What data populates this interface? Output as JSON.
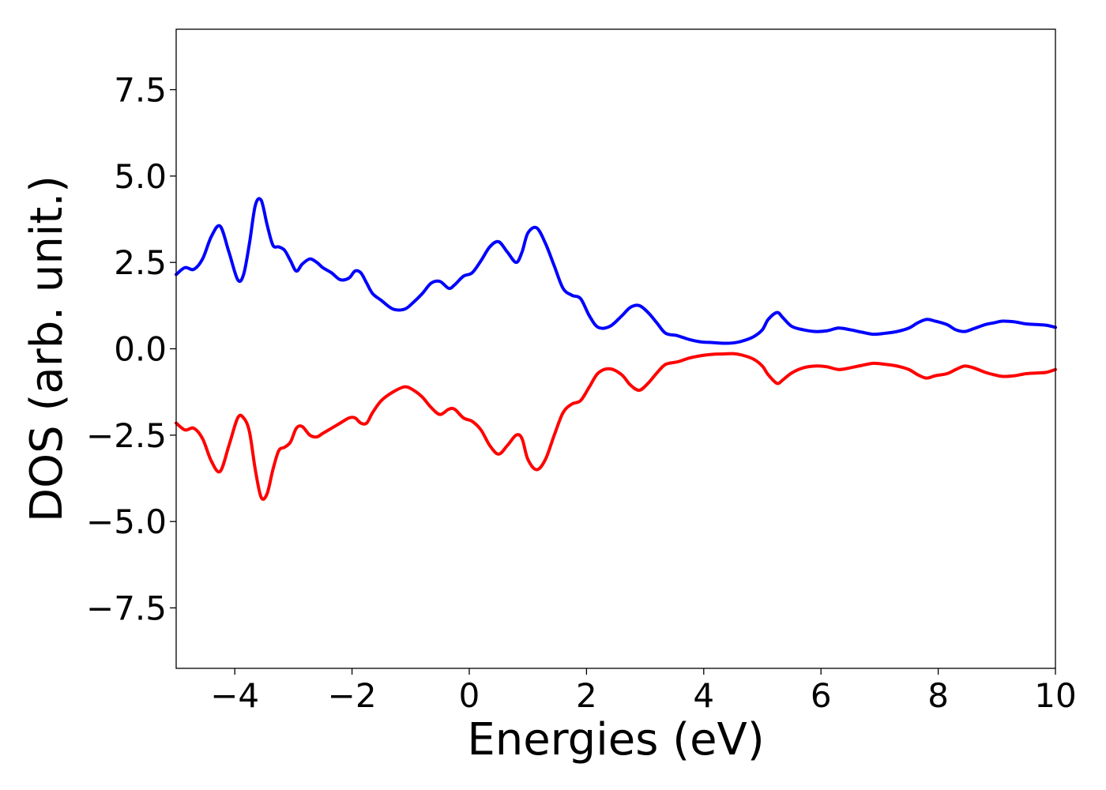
{
  "chart_data": {
    "type": "line",
    "title": "",
    "xlabel": "Energies (eV)",
    "ylabel": "DOS (arb. unit.)",
    "xlim": [
      -5,
      10
    ],
    "ylim": [
      -9.25,
      9.25
    ],
    "grid": false,
    "legend": "none",
    "x_ticks": [
      -4,
      -2,
      0,
      2,
      4,
      6,
      8,
      10
    ],
    "x_tick_labels": [
      "−4",
      "−2",
      "0",
      "2",
      "4",
      "6",
      "8",
      "10"
    ],
    "y_ticks": [
      7.5,
      5.0,
      2.5,
      0.0,
      -2.5,
      -5.0,
      -7.5
    ],
    "y_tick_labels": [
      "7.5",
      "5.0",
      "2.5",
      "0.0",
      "−2.5",
      "−5.0",
      "−7.5"
    ],
    "series": [
      {
        "color": "#0000ff",
        "x": [
          -5.0,
          -4.85,
          -4.7,
          -4.55,
          -4.4,
          -4.25,
          -4.1,
          -3.95,
          -3.85,
          -3.75,
          -3.65,
          -3.55,
          -3.45,
          -3.35,
          -3.25,
          -3.15,
          -3.05,
          -2.95,
          -2.85,
          -2.72,
          -2.6,
          -2.5,
          -2.35,
          -2.2,
          -2.05,
          -1.95,
          -1.85,
          -1.75,
          -1.65,
          -1.5,
          -1.3,
          -1.1,
          -0.95,
          -0.8,
          -0.65,
          -0.5,
          -0.35,
          -0.25,
          -0.1,
          0.05,
          0.2,
          0.35,
          0.5,
          0.65,
          0.8,
          0.9,
          1.0,
          1.15,
          1.3,
          1.45,
          1.6,
          1.75,
          1.9,
          2.05,
          2.2,
          2.4,
          2.6,
          2.75,
          2.9,
          3.05,
          3.2,
          3.35,
          3.55,
          3.75,
          3.95,
          4.15,
          4.35,
          4.5,
          4.65,
          4.85,
          5.0,
          5.1,
          5.25,
          5.35,
          5.5,
          5.7,
          5.9,
          6.1,
          6.3,
          6.5,
          6.7,
          6.9,
          7.1,
          7.3,
          7.5,
          7.65,
          7.8,
          7.95,
          8.15,
          8.3,
          8.45,
          8.6,
          8.8,
          8.95,
          9.1,
          9.3,
          9.5,
          9.7,
          9.85,
          10.0
        ],
        "y": [
          2.15,
          2.35,
          2.3,
          2.6,
          3.25,
          3.55,
          2.8,
          2.0,
          2.15,
          3.05,
          4.15,
          4.3,
          3.6,
          3.0,
          2.95,
          2.85,
          2.55,
          2.25,
          2.45,
          2.6,
          2.5,
          2.35,
          2.2,
          2.0,
          2.05,
          2.25,
          2.2,
          1.9,
          1.6,
          1.4,
          1.15,
          1.15,
          1.35,
          1.6,
          1.9,
          1.95,
          1.75,
          1.85,
          2.1,
          2.2,
          2.55,
          2.95,
          3.1,
          2.8,
          2.5,
          2.8,
          3.35,
          3.5,
          3.05,
          2.4,
          1.75,
          1.55,
          1.45,
          0.95,
          0.62,
          0.65,
          0.95,
          1.2,
          1.25,
          1.05,
          0.75,
          0.45,
          0.38,
          0.27,
          0.2,
          0.18,
          0.16,
          0.17,
          0.22,
          0.35,
          0.55,
          0.85,
          1.05,
          0.9,
          0.65,
          0.55,
          0.5,
          0.52,
          0.6,
          0.55,
          0.48,
          0.42,
          0.45,
          0.5,
          0.6,
          0.75,
          0.85,
          0.8,
          0.7,
          0.55,
          0.5,
          0.58,
          0.7,
          0.75,
          0.8,
          0.78,
          0.72,
          0.7,
          0.68,
          0.62
        ]
      },
      {
        "color": "#ff0000",
        "x": [
          -5.0,
          -4.85,
          -4.7,
          -4.55,
          -4.4,
          -4.25,
          -4.1,
          -3.95,
          -3.85,
          -3.75,
          -3.65,
          -3.55,
          -3.45,
          -3.35,
          -3.25,
          -3.15,
          -3.05,
          -2.95,
          -2.85,
          -2.72,
          -2.6,
          -2.5,
          -2.35,
          -2.2,
          -2.05,
          -1.95,
          -1.85,
          -1.75,
          -1.65,
          -1.5,
          -1.3,
          -1.1,
          -0.95,
          -0.8,
          -0.65,
          -0.5,
          -0.35,
          -0.25,
          -0.1,
          0.05,
          0.2,
          0.35,
          0.5,
          0.65,
          0.8,
          0.9,
          1.0,
          1.15,
          1.3,
          1.45,
          1.6,
          1.75,
          1.9,
          2.05,
          2.2,
          2.4,
          2.6,
          2.75,
          2.9,
          3.05,
          3.2,
          3.35,
          3.55,
          3.75,
          3.95,
          4.15,
          4.35,
          4.5,
          4.65,
          4.85,
          5.0,
          5.1,
          5.25,
          5.35,
          5.5,
          5.7,
          5.9,
          6.1,
          6.3,
          6.5,
          6.7,
          6.9,
          7.1,
          7.3,
          7.5,
          7.65,
          7.8,
          7.95,
          8.15,
          8.3,
          8.45,
          8.6,
          8.8,
          8.95,
          9.1,
          9.3,
          9.5,
          9.7,
          9.85,
          10.0
        ],
        "y": [
          -2.15,
          -2.35,
          -2.3,
          -2.6,
          -3.25,
          -3.55,
          -2.8,
          -2.0,
          -2.0,
          -2.4,
          -3.5,
          -4.3,
          -4.2,
          -3.5,
          -2.95,
          -2.85,
          -2.7,
          -2.3,
          -2.25,
          -2.5,
          -2.55,
          -2.45,
          -2.3,
          -2.15,
          -2.0,
          -2.0,
          -2.15,
          -2.15,
          -1.85,
          -1.5,
          -1.25,
          -1.1,
          -1.2,
          -1.4,
          -1.7,
          -1.9,
          -1.75,
          -1.75,
          -2.0,
          -2.1,
          -2.35,
          -2.8,
          -3.05,
          -2.8,
          -2.5,
          -2.6,
          -3.2,
          -3.5,
          -3.2,
          -2.5,
          -1.85,
          -1.6,
          -1.5,
          -1.1,
          -0.7,
          -0.58,
          -0.75,
          -1.05,
          -1.2,
          -1.0,
          -0.7,
          -0.45,
          -0.38,
          -0.27,
          -0.2,
          -0.16,
          -0.15,
          -0.14,
          -0.18,
          -0.3,
          -0.5,
          -0.75,
          -1.0,
          -0.9,
          -0.7,
          -0.55,
          -0.5,
          -0.52,
          -0.6,
          -0.55,
          -0.48,
          -0.42,
          -0.45,
          -0.5,
          -0.6,
          -0.75,
          -0.85,
          -0.78,
          -0.72,
          -0.6,
          -0.5,
          -0.55,
          -0.68,
          -0.75,
          -0.8,
          -0.78,
          -0.72,
          -0.7,
          -0.68,
          -0.6
        ]
      }
    ]
  }
}
